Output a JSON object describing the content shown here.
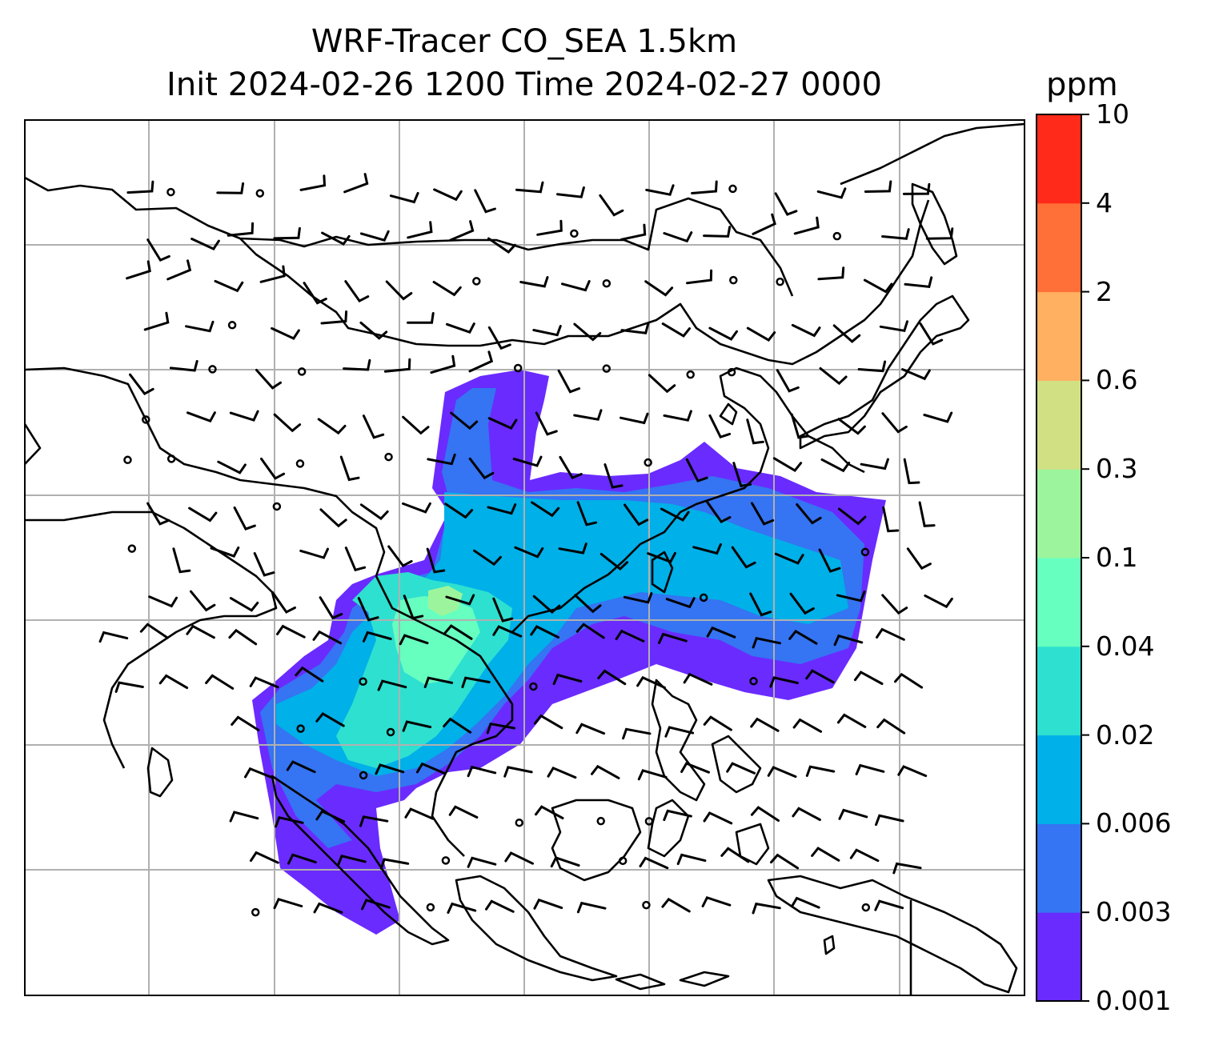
{
  "title": {
    "line1": "WRF-Tracer CO_SEA 1.5km",
    "line2": "Init 2024-02-26 1200 Time 2024-02-27 0000"
  },
  "colorbar": {
    "unit": "ppm",
    "levels": [
      "0.001",
      "0.003",
      "0.006",
      "0.02",
      "0.04",
      "0.1",
      "0.3",
      "0.6",
      "2",
      "4",
      "10"
    ],
    "colors": [
      "#6a2bff",
      "#3574f2",
      "#00b0e8",
      "#2ee0d0",
      "#66ffc0",
      "#9cf59c",
      "#d2e084",
      "#ffb060",
      "#ff7038",
      "#ff2a1a"
    ]
  },
  "map": {
    "gridlines": true,
    "coastline_color": "#000000",
    "grid_color": "#b0b0b0",
    "plume_levels_drawn": [
      "0.001",
      "0.003",
      "0.006",
      "0.02",
      "0.04",
      "0.1"
    ],
    "wind_barbs": true
  }
}
